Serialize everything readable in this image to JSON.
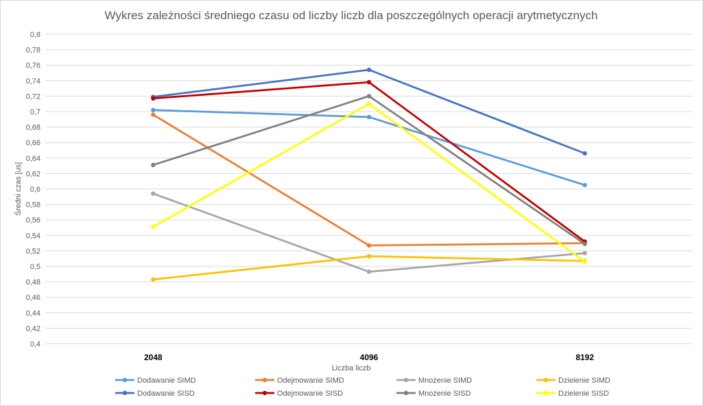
{
  "chart_data": {
    "type": "line",
    "title": "Wykres zależności średniego czasu od liczby liczb dla poszczególnych operacji arytmetycznych",
    "xlabel": "Liczba liczb",
    "ylabel": "Średni czas [us]",
    "categories": [
      "2048",
      "4096",
      "8192"
    ],
    "ylim": [
      0.4,
      0.8
    ],
    "yticks": [
      "0,4",
      "0,42",
      "0,44",
      "0,46",
      "0,48",
      "0,5",
      "0,52",
      "0,54",
      "0,56",
      "0,58",
      "0,6",
      "0,62",
      "0,64",
      "0,66",
      "0,68",
      "0,7",
      "0,72",
      "0,74",
      "0,76",
      "0,78",
      "0,8"
    ],
    "grid": true,
    "legend_position": "bottom",
    "series": [
      {
        "name": "Dodawanie SIMD",
        "color": "#5B9BD5",
        "values": [
          0.702,
          0.693,
          0.605
        ]
      },
      {
        "name": "Odejmowanie SIMD",
        "color": "#ED7D31",
        "values": [
          0.696,
          0.527,
          0.53
        ]
      },
      {
        "name": "Mnożenie SIMD",
        "color": "#A5A5A5",
        "values": [
          0.594,
          0.493,
          0.517
        ]
      },
      {
        "name": "Dzielenie SIMD",
        "color": "#FFC000",
        "values": [
          0.483,
          0.513,
          0.507
        ]
      },
      {
        "name": "Dodawanie SISD",
        "color": "#4472C4",
        "values": [
          0.719,
          0.754,
          0.646
        ]
      },
      {
        "name": "Odejmowanie SISD",
        "color": "#C00000",
        "values": [
          0.717,
          0.738,
          0.532
        ]
      },
      {
        "name": "Mnożenie SISD",
        "color": "#7F7F7F",
        "values": [
          0.631,
          0.72,
          0.529
        ]
      },
      {
        "name": "Dzielenie SISD",
        "color": "#FFFF00",
        "values": [
          0.551,
          0.71,
          0.506
        ]
      }
    ]
  }
}
